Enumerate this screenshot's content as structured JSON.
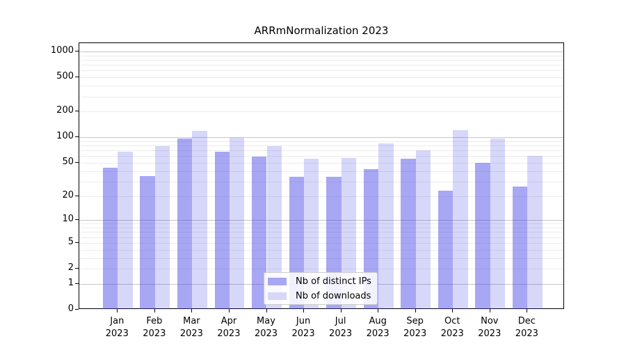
{
  "chart_data": {
    "type": "bar",
    "title": "ARRmNormalization 2023",
    "months": [
      "Jan",
      "Feb",
      "Mar",
      "Apr",
      "May",
      "Jun",
      "Jul",
      "Aug",
      "Sep",
      "Oct",
      "Nov",
      "Dec"
    ],
    "year": "2023",
    "series": [
      {
        "name": "Nb of distinct IPs",
        "values": [
          44,
          35,
          97,
          68,
          59,
          34,
          34,
          42,
          56,
          23,
          50,
          26
        ]
      },
      {
        "name": "Nb of downloads",
        "values": [
          68,
          78,
          118,
          98,
          79,
          56,
          57,
          85,
          70,
          122,
          97,
          60
        ]
      }
    ],
    "yscale": "log1p",
    "ylim": [
      0,
      1240
    ],
    "yticks": [
      0,
      1,
      2,
      5,
      10,
      20,
      50,
      100,
      200,
      500,
      1000
    ],
    "grid_major": [
      1,
      10,
      100,
      1000
    ],
    "grid_minor": [
      2,
      3,
      4,
      5,
      6,
      7,
      8,
      9,
      20,
      30,
      40,
      50,
      60,
      70,
      80,
      90,
      200,
      300,
      400,
      500,
      600,
      700,
      800,
      900
    ],
    "legend_position": "lower-center",
    "grid": "on",
    "colors": {
      "distinct_ips_fill": "rgba(55,55,228,0.44)",
      "downloads_fill": "rgba(55,55,228,0.20)",
      "distinct_ips_solid": "#a7a7f3",
      "downloads_solid": "#d7d7f9",
      "grid_major": "#c6c6c6",
      "grid_minor": "#ececec"
    }
  }
}
